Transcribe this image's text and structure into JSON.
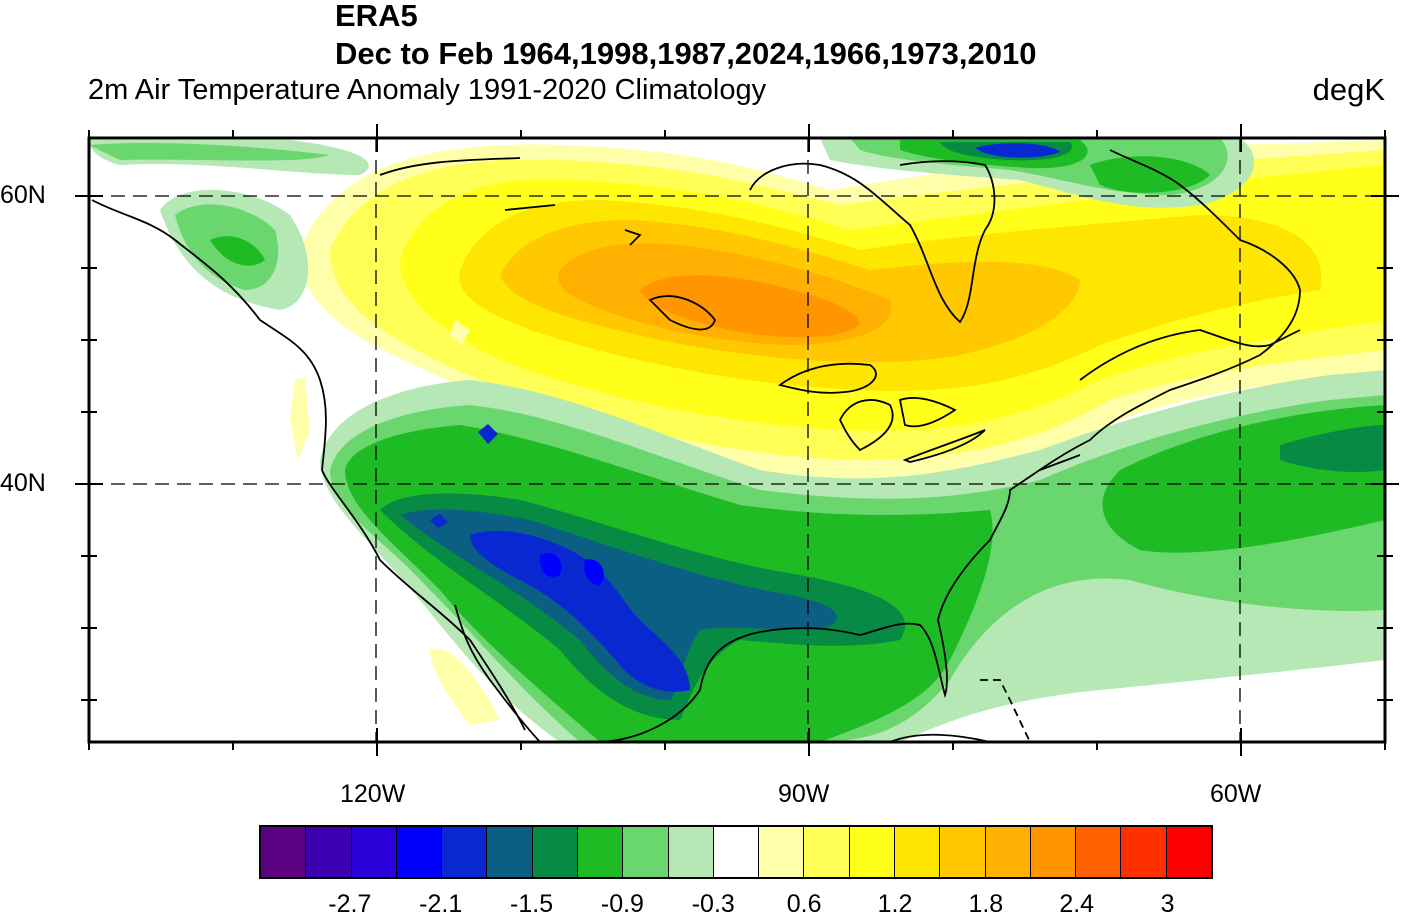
{
  "title": {
    "line1": "ERA5",
    "line2": "Dec to Feb 1964,1998,1987,2024,1966,1973,2010",
    "subtitle_left": "2m Air Temperature Anomaly  1991-2020 Climatology",
    "units": "degK"
  },
  "map": {
    "projection": "cylindrical equidistant",
    "lon_range": [
      "140W",
      "50W"
    ],
    "lat_range": [
      "22N",
      "64N"
    ],
    "gridlines": "dashed",
    "lon_labels": [
      "120W",
      "90W",
      "60W"
    ],
    "lat_labels": [
      "60N",
      "40N"
    ]
  },
  "colorbar": {
    "labels": [
      "-2.7",
      "-2.1",
      "-1.5",
      "-0.9",
      "-0.3",
      "0.6",
      "1.2",
      "1.8",
      "2.4",
      "3"
    ],
    "colors": [
      "#5a0080",
      "#3c00b0",
      "#2a00d8",
      "#0000ff",
      "#0a28d2",
      "#0a5f82",
      "#078a44",
      "#1fbb24",
      "#6ad66e",
      "#b5e8b5",
      "#ffffff",
      "#ffffaa",
      "#ffff55",
      "#ffff1a",
      "#ffe600",
      "#ffc800",
      "#ffb000",
      "#ff9600",
      "#ff6000",
      "#ff3000",
      "#ff0000"
    ]
  }
}
